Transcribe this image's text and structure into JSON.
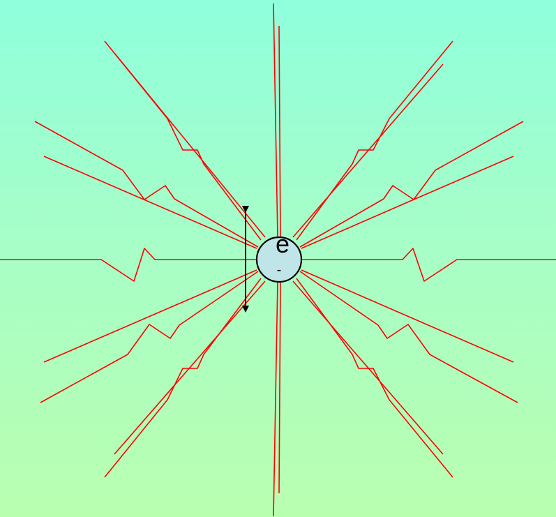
{
  "electron": {
    "symbol": "e",
    "charge": "-",
    "fill_color": "#bfe5e8"
  },
  "colors": {
    "field_line": "#ff0000",
    "arrow": "#000000"
  }
}
